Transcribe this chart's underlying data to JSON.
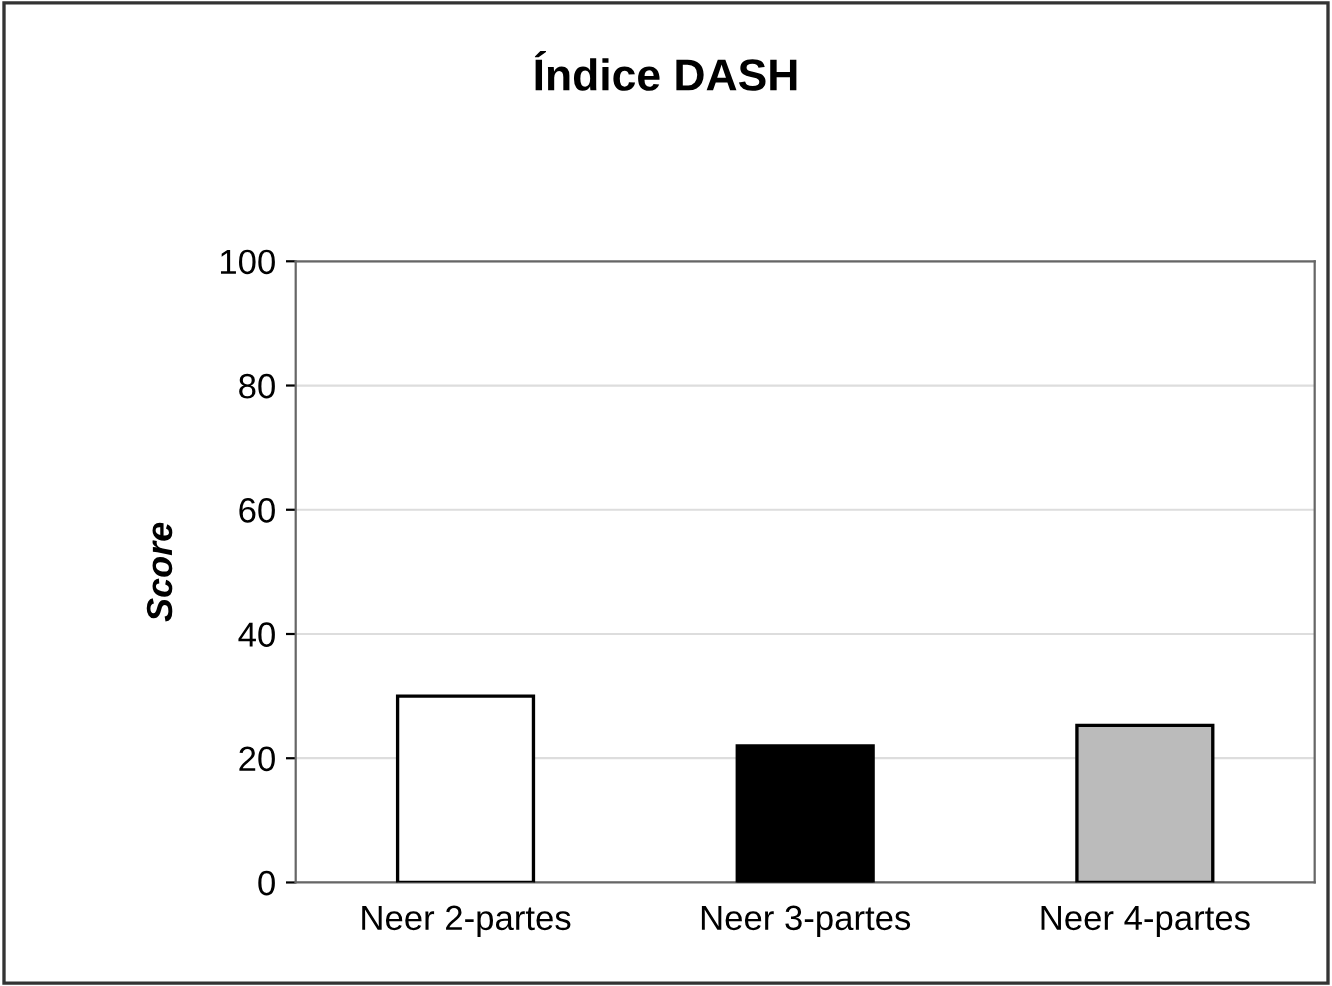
{
  "chart_data": {
    "type": "bar",
    "title": "Índice DASH",
    "ylabel": "Score",
    "categories": [
      "Neer 2-partes",
      "Neer 3-partes",
      "Neer 4-partes"
    ],
    "values": [
      30,
      22,
      25.3
    ],
    "colors": [
      "#ffffff",
      "#000000",
      "#bbbbbb"
    ],
    "ylim": [
      0,
      100
    ],
    "yticks": [
      0,
      20,
      40,
      60,
      80,
      100
    ],
    "grid": "y"
  }
}
